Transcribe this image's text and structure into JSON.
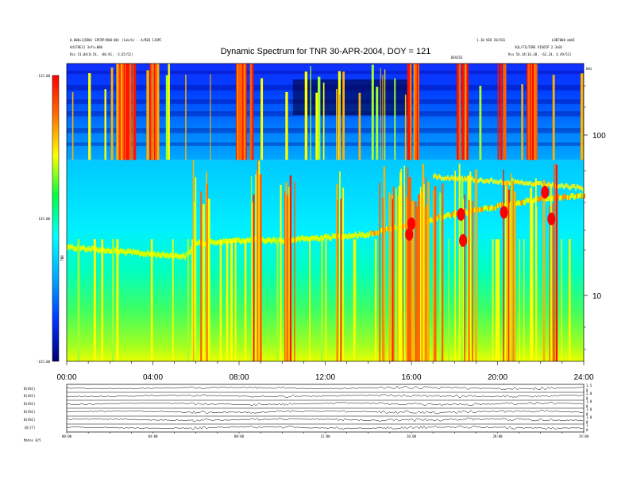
{
  "header": {
    "title": "Dynamic Spectrum for TNR 30-APR-2004, DOY = 121",
    "left_line1": "0.000×3(DD0) SPCRP(R00:00) (1ok/k) - A/REQ 1JOPC",
    "left_line2": "Vd[FRE3] 3ofs=000",
    "left_line3": "Rss    51.04(0.54, -80.91, -3.65/52)",
    "right_line1": "1.10 VEO 20/C01",
    "right_line2": "LOB7000 mb01",
    "right_line3": "SQL/FILTURE VIEOCP 2.3v01",
    "right_line4": "Rss    54.34(16.38, -62.24, 4.49/52)",
    "marker_label": "DEVICE",
    "colorbar_title": "TNR"
  },
  "chart_data": [
    {
      "type": "heatmap",
      "title": "Dynamic Spectrum for TNR 30-APR-2004, DOY = 121",
      "x_ticks": [
        "00:00",
        "04:00",
        "08:00",
        "12:00",
        "16:00",
        "20:00",
        "24:00"
      ],
      "xlim_hours": [
        0,
        24
      ],
      "yscale": "log",
      "y_ticks": [
        "100",
        "10"
      ],
      "y_unit": "kHz",
      "colorbar": {
        "label": "TNR",
        "ticks": [
          "-115.00",
          "-135.00",
          "-155.00"
        ],
        "range": [
          -155,
          -115
        ],
        "colors": [
          "#000080",
          "#0000ff",
          "#00a0ff",
          "#00ffff",
          "#00ff60",
          "#ffff00",
          "#ff8000",
          "#ff0000"
        ]
      },
      "band_split_khz": 70,
      "intense_periods_hours": [
        [
          2.3,
          3.1
        ],
        [
          3.8,
          4.2
        ],
        [
          7.8,
          8.6
        ],
        [
          15.8,
          16.4
        ],
        [
          18.1,
          18.6
        ],
        [
          20.0,
          20.4
        ],
        [
          21.3,
          21.8
        ]
      ],
      "emission_line_khz_by_hour": {
        "hours": [
          0,
          2,
          4,
          5.5,
          6,
          8,
          10,
          12,
          14,
          16,
          18,
          20,
          22,
          24
        ],
        "khz": [
          20,
          19,
          18,
          17.5,
          21,
          22,
          22,
          23,
          24,
          28,
          32,
          36,
          40,
          42
        ]
      }
    },
    {
      "type": "line",
      "panels": [
        "B(ASC)",
        "B(ASC)",
        "B(ASC)",
        "B(ASC)",
        "B(ASC)",
        "|B|(T)"
      ],
      "x_ticks": [
        "00:00",
        "04:00",
        "08:00",
        "12:00",
        "16:00",
        "20:00",
        "24:00"
      ],
      "right_ticks": [
        [
          "1.5",
          "0"
        ],
        [
          "2.0",
          "0"
        ],
        [
          "1.0",
          "0"
        ],
        [
          "1.0",
          "0"
        ],
        [
          "1.0",
          "0"
        ],
        [
          "1",
          "0"
        ]
      ],
      "footer": "Mates  0/5"
    }
  ]
}
